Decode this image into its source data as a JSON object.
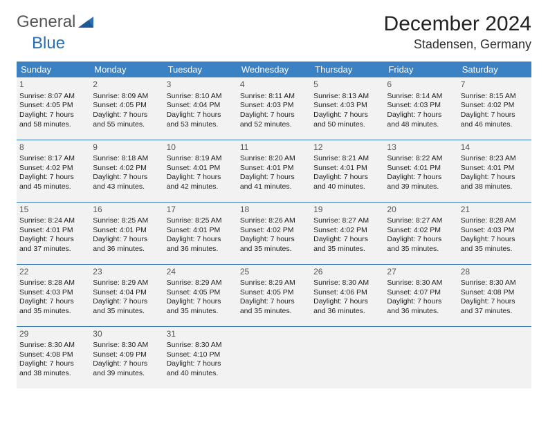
{
  "logo": {
    "word1": "General",
    "word2": "Blue"
  },
  "title": "December 2024",
  "location": "Stadensen, Germany",
  "colors": {
    "header_bg": "#3a82c4",
    "header_text": "#ffffff",
    "row_bg": "#f2f2f2",
    "border": "#2a6fb5",
    "logo_blue": "#2a6fb5",
    "logo_gray": "#555555",
    "text": "#1a1a1a"
  },
  "day_headers": [
    "Sunday",
    "Monday",
    "Tuesday",
    "Wednesday",
    "Thursday",
    "Friday",
    "Saturday"
  ],
  "weeks": [
    [
      {
        "n": "1",
        "sr": "8:07 AM",
        "ss": "4:05 PM",
        "dl": "7 hours and 58 minutes."
      },
      {
        "n": "2",
        "sr": "8:09 AM",
        "ss": "4:05 PM",
        "dl": "7 hours and 55 minutes."
      },
      {
        "n": "3",
        "sr": "8:10 AM",
        "ss": "4:04 PM",
        "dl": "7 hours and 53 minutes."
      },
      {
        "n": "4",
        "sr": "8:11 AM",
        "ss": "4:03 PM",
        "dl": "7 hours and 52 minutes."
      },
      {
        "n": "5",
        "sr": "8:13 AM",
        "ss": "4:03 PM",
        "dl": "7 hours and 50 minutes."
      },
      {
        "n": "6",
        "sr": "8:14 AM",
        "ss": "4:03 PM",
        "dl": "7 hours and 48 minutes."
      },
      {
        "n": "7",
        "sr": "8:15 AM",
        "ss": "4:02 PM",
        "dl": "7 hours and 46 minutes."
      }
    ],
    [
      {
        "n": "8",
        "sr": "8:17 AM",
        "ss": "4:02 PM",
        "dl": "7 hours and 45 minutes."
      },
      {
        "n": "9",
        "sr": "8:18 AM",
        "ss": "4:02 PM",
        "dl": "7 hours and 43 minutes."
      },
      {
        "n": "10",
        "sr": "8:19 AM",
        "ss": "4:01 PM",
        "dl": "7 hours and 42 minutes."
      },
      {
        "n": "11",
        "sr": "8:20 AM",
        "ss": "4:01 PM",
        "dl": "7 hours and 41 minutes."
      },
      {
        "n": "12",
        "sr": "8:21 AM",
        "ss": "4:01 PM",
        "dl": "7 hours and 40 minutes."
      },
      {
        "n": "13",
        "sr": "8:22 AM",
        "ss": "4:01 PM",
        "dl": "7 hours and 39 minutes."
      },
      {
        "n": "14",
        "sr": "8:23 AM",
        "ss": "4:01 PM",
        "dl": "7 hours and 38 minutes."
      }
    ],
    [
      {
        "n": "15",
        "sr": "8:24 AM",
        "ss": "4:01 PM",
        "dl": "7 hours and 37 minutes."
      },
      {
        "n": "16",
        "sr": "8:25 AM",
        "ss": "4:01 PM",
        "dl": "7 hours and 36 minutes."
      },
      {
        "n": "17",
        "sr": "8:25 AM",
        "ss": "4:01 PM",
        "dl": "7 hours and 36 minutes."
      },
      {
        "n": "18",
        "sr": "8:26 AM",
        "ss": "4:02 PM",
        "dl": "7 hours and 35 minutes."
      },
      {
        "n": "19",
        "sr": "8:27 AM",
        "ss": "4:02 PM",
        "dl": "7 hours and 35 minutes."
      },
      {
        "n": "20",
        "sr": "8:27 AM",
        "ss": "4:02 PM",
        "dl": "7 hours and 35 minutes."
      },
      {
        "n": "21",
        "sr": "8:28 AM",
        "ss": "4:03 PM",
        "dl": "7 hours and 35 minutes."
      }
    ],
    [
      {
        "n": "22",
        "sr": "8:28 AM",
        "ss": "4:03 PM",
        "dl": "7 hours and 35 minutes."
      },
      {
        "n": "23",
        "sr": "8:29 AM",
        "ss": "4:04 PM",
        "dl": "7 hours and 35 minutes."
      },
      {
        "n": "24",
        "sr": "8:29 AM",
        "ss": "4:05 PM",
        "dl": "7 hours and 35 minutes."
      },
      {
        "n": "25",
        "sr": "8:29 AM",
        "ss": "4:05 PM",
        "dl": "7 hours and 35 minutes."
      },
      {
        "n": "26",
        "sr": "8:30 AM",
        "ss": "4:06 PM",
        "dl": "7 hours and 36 minutes."
      },
      {
        "n": "27",
        "sr": "8:30 AM",
        "ss": "4:07 PM",
        "dl": "7 hours and 36 minutes."
      },
      {
        "n": "28",
        "sr": "8:30 AM",
        "ss": "4:08 PM",
        "dl": "7 hours and 37 minutes."
      }
    ],
    [
      {
        "n": "29",
        "sr": "8:30 AM",
        "ss": "4:08 PM",
        "dl": "7 hours and 38 minutes."
      },
      {
        "n": "30",
        "sr": "8:30 AM",
        "ss": "4:09 PM",
        "dl": "7 hours and 39 minutes."
      },
      {
        "n": "31",
        "sr": "8:30 AM",
        "ss": "4:10 PM",
        "dl": "7 hours and 40 minutes."
      },
      null,
      null,
      null,
      null
    ]
  ],
  "labels": {
    "sunrise": "Sunrise:",
    "sunset": "Sunset:",
    "daylight": "Daylight:"
  }
}
